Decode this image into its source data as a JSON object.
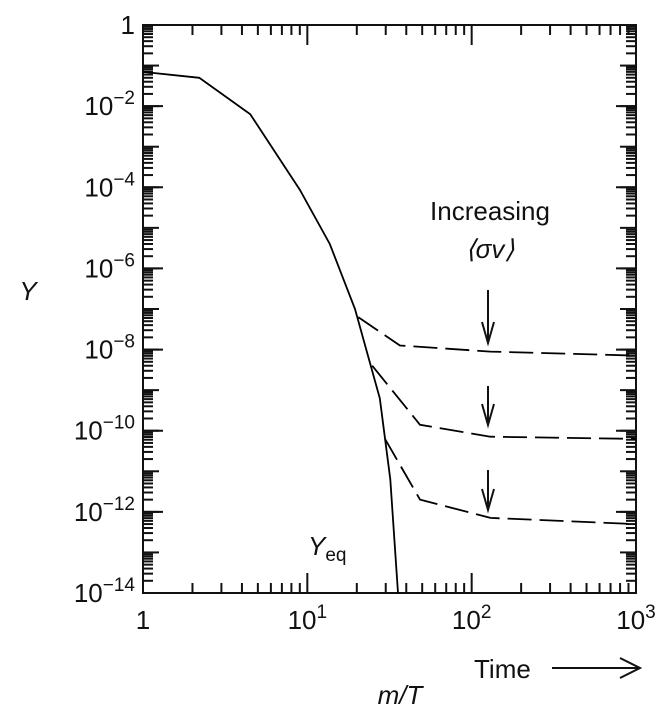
{
  "chart_data": {
    "type": "line",
    "x_label": "m/T",
    "y_label": "Y",
    "xlim": [
      1,
      1000
    ],
    "ylim": [
      1e-14,
      1
    ],
    "log_x": true,
    "log_y": true,
    "minor_ticks": true,
    "xticks": [
      1,
      {
        "value": 10,
        "label": "10",
        "exponent": "1"
      },
      {
        "value": 100,
        "label": "10",
        "exponent": "2"
      },
      {
        "value": 1000,
        "label": "10",
        "exponent": "3"
      }
    ],
    "yticks": [
      {
        "value": 1e-14,
        "label": "10",
        "exponent": "−14"
      },
      {
        "value": 1e-12,
        "label": "10",
        "exponent": "−12"
      },
      {
        "value": 1e-10,
        "label": "10",
        "exponent": "−10"
      },
      {
        "value": 1e-08,
        "label": "10",
        "exponent": "−8"
      },
      {
        "value": 1e-06,
        "label": "10",
        "exponent": "−6"
      },
      {
        "value": 0.0001,
        "label": "10",
        "exponent": "−4"
      },
      {
        "value": 0.01,
        "label": "10",
        "exponent": "−2"
      },
      1
    ],
    "series": [
      {
        "color": "#000000",
        "style": "solid",
        "x": [
          1,
          2.2,
          4.5,
          9,
          13.7,
          19.5,
          27.6,
          32,
          35.6
        ],
        "values": [
          0.07,
          0.05,
          0.0063,
          8.7e-05,
          4e-06,
          1e-07,
          6.3e-10,
          6.3e-12,
          1e-14
        ]
      },
      {
        "color": "#000000",
        "style": "dashed",
        "x": [
          20.4,
          36.6,
          130,
          1000
        ],
        "values": [
          6.3e-08,
          1.26e-08,
          8.9e-09,
          7.1e-09
        ]
      },
      {
        "color": "#000000",
        "style": "dashed",
        "x": [
          24.8,
          48.5,
          130,
          1000
        ],
        "values": [
          4e-09,
          1.4e-10,
          7.1e-11,
          6.3e-11
        ]
      },
      {
        "color": "#000000",
        "style": "dashed",
        "x": [
          29.7,
          48.5,
          130,
          1000
        ],
        "values": [
          6.3e-11,
          2e-12,
          7.1e-13,
          5e-13
        ]
      }
    ],
    "annotations": {
      "increasing": "Increasing",
      "sigma_v": "⟨σv⟩",
      "time": "Time",
      "y_eq": {
        "text": "Y",
        "subscript": "eq"
      }
    }
  }
}
